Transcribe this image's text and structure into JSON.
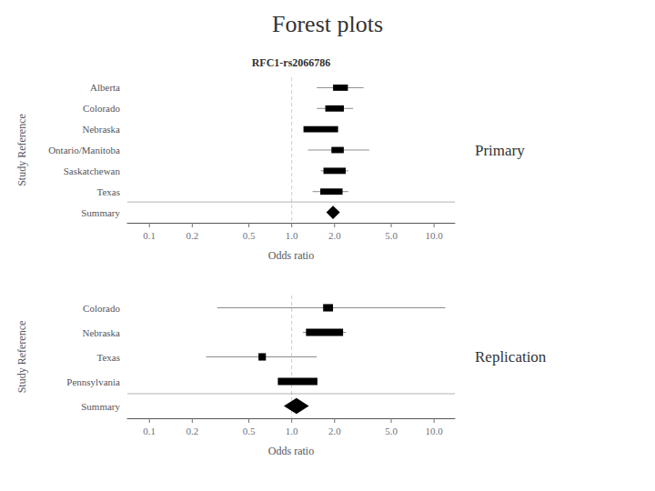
{
  "chart_data": [
    {
      "type": "forest",
      "title": "Forest plots",
      "subtitle": "RFC1-rs2066786",
      "annotations": [
        "Primary"
      ],
      "categories": [
        "Alberta",
        "Colorado",
        "Nebraska",
        "Ontario/Manitoba",
        "Saskatchewan",
        "Texas"
      ],
      "values": [
        2.2,
        2.0,
        1.6,
        2.1,
        2.0,
        1.9
      ],
      "ci_low": [
        1.5,
        1.5,
        1.3,
        1.3,
        1.6,
        1.4
      ],
      "ci_high": [
        3.2,
        2.7,
        2.0,
        3.5,
        2.5,
        2.5
      ],
      "box_half_log": [
        0.12,
        0.15,
        0.28,
        0.1,
        0.18,
        0.18
      ],
      "summary": {
        "label": "Summary",
        "value": 1.95,
        "ci_low": 1.75,
        "ci_high": 2.18
      },
      "x_label": "Odds ratio",
      "y_label": "Study Reference",
      "xlim": [
        0.07,
        14.0
      ],
      "xticks": [
        0.1,
        0.2,
        0.5,
        {
          "value": 1.0,
          "label": "1.0"
        },
        {
          "value": 2.0,
          "label": "2.0"
        },
        {
          "value": 5.0,
          "label": "5.0"
        },
        {
          "value": 10.0,
          "label": "10.0"
        }
      ],
      "log": "x",
      "reference_line": 1.0,
      "grid": false,
      "color": "#000000"
    },
    {
      "type": "forest",
      "annotations": [
        "Replication"
      ],
      "categories": [
        "Colorado",
        "Nebraska",
        "Texas",
        "Pennsylvania"
      ],
      "values": [
        1.8,
        1.7,
        0.62,
        1.1
      ],
      "ci_low": [
        0.3,
        1.2,
        0.25,
        0.85
      ],
      "ci_high": [
        12.0,
        2.4,
        1.5,
        1.5
      ],
      "box_half_log": [
        0.08,
        0.3,
        0.06,
        0.32
      ],
      "summary": {
        "label": "Summary",
        "value": 1.08,
        "ci_low": 0.88,
        "ci_high": 1.32
      },
      "x_label": "Odds ratio",
      "y_label": "Study Reference",
      "xlim": [
        0.07,
        14.0
      ],
      "xticks": [
        0.1,
        0.2,
        0.5,
        {
          "value": 1.0,
          "label": "1.0"
        },
        {
          "value": 2.0,
          "label": "2.0"
        },
        {
          "value": 5.0,
          "label": "5.0"
        },
        {
          "value": 10.0,
          "label": "10.0"
        }
      ],
      "log": "x",
      "reference_line": 1.0,
      "grid": false,
      "color": "#000000"
    }
  ]
}
